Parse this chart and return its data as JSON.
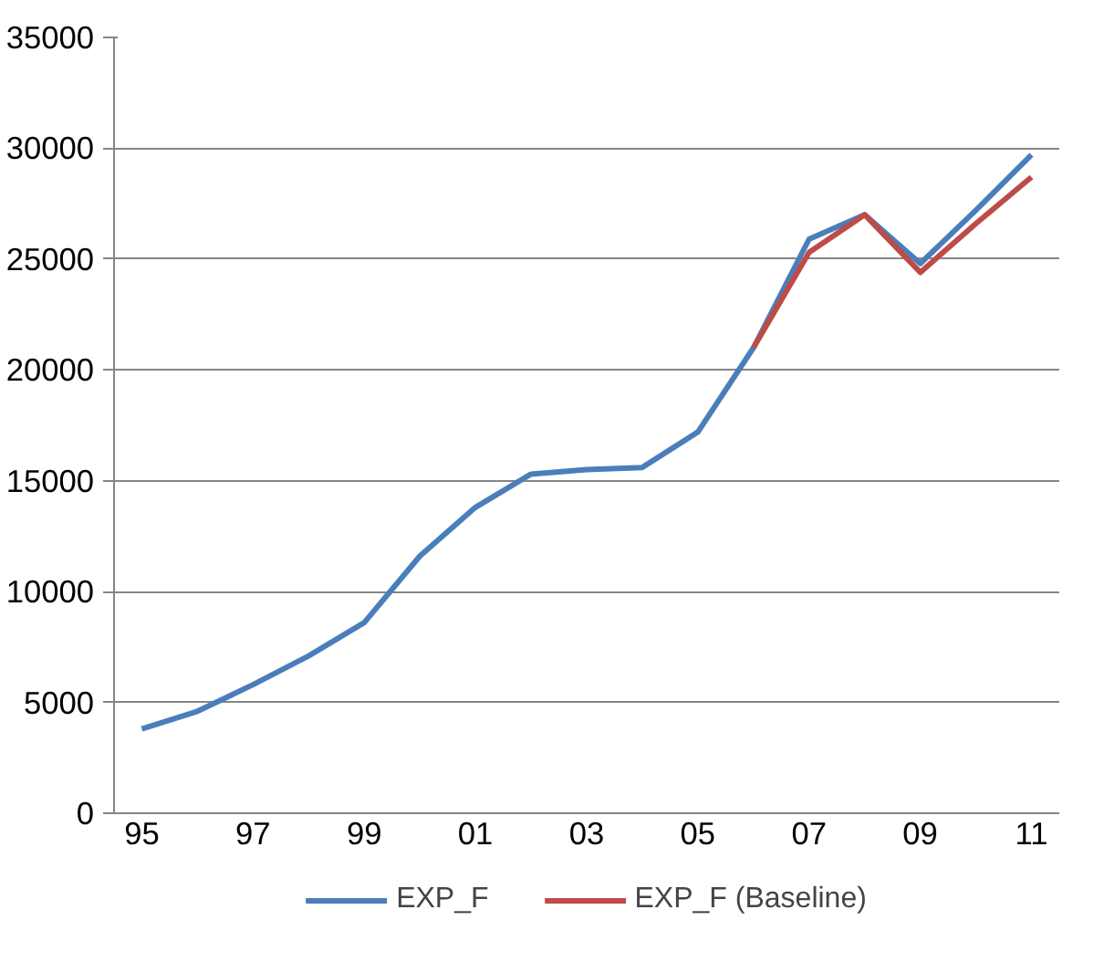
{
  "chart_data": {
    "type": "line",
    "categories": [
      "95",
      null,
      "97",
      null,
      "99",
      null,
      "01",
      null,
      "03",
      null,
      "05",
      null,
      "07",
      null,
      "09",
      null,
      "11"
    ],
    "series": [
      {
        "name": "EXP_F",
        "color": "#4a7ebb",
        "values": [
          3800,
          4600,
          5800,
          7100,
          8600,
          11600,
          13800,
          15300,
          15500,
          15600,
          17200,
          21000,
          25900,
          27000,
          24800,
          27200,
          29700
        ]
      },
      {
        "name": "EXP_F (Baseline)",
        "color": "#be4b48",
        "values": [
          null,
          null,
          null,
          null,
          null,
          null,
          null,
          null,
          null,
          null,
          null,
          21000,
          25300,
          27000,
          24400,
          26600,
          28700
        ]
      }
    ],
    "ylim": [
      0,
      35000
    ],
    "yticks": [
      0,
      5000,
      10000,
      15000,
      20000,
      25000,
      30000,
      35000
    ],
    "grid": "y",
    "legend": "bottom",
    "marker": "none",
    "line_style": "solid"
  }
}
